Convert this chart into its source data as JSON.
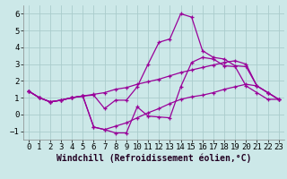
{
  "xlabel": "Windchill (Refroidissement éolien,°C)",
  "bg_color": "#cce8e8",
  "line_color": "#990099",
  "grid_color": "#aacccc",
  "xlim": [
    -0.5,
    23.5
  ],
  "ylim": [
    -1.5,
    6.5
  ],
  "xticks": [
    0,
    1,
    2,
    3,
    4,
    5,
    6,
    7,
    8,
    9,
    10,
    11,
    12,
    13,
    14,
    15,
    16,
    17,
    18,
    19,
    20,
    21,
    22,
    23
  ],
  "yticks": [
    -1,
    0,
    1,
    2,
    3,
    4,
    5,
    6
  ],
  "y_line1": [
    1.4,
    1.0,
    0.75,
    0.85,
    1.0,
    1.1,
    1.15,
    0.35,
    0.85,
    0.85,
    1.65,
    3.0,
    4.3,
    4.5,
    6.0,
    5.8,
    3.8,
    3.4,
    3.3,
    2.9,
    2.85,
    1.7,
    1.3,
    0.9
  ],
  "y_line2": [
    1.4,
    1.0,
    0.75,
    0.85,
    1.0,
    1.1,
    -0.75,
    -0.9,
    -1.1,
    -1.1,
    0.45,
    -0.1,
    -0.15,
    -0.2,
    1.65,
    3.1,
    3.4,
    3.3,
    2.9,
    2.85,
    1.7,
    1.3,
    0.9,
    0.9
  ],
  "y_line3": [
    1.4,
    1.0,
    0.75,
    0.85,
    1.0,
    1.1,
    1.2,
    1.3,
    1.5,
    1.6,
    1.8,
    1.95,
    2.1,
    2.3,
    2.5,
    2.65,
    2.8,
    2.95,
    3.1,
    3.2,
    3.0,
    1.7,
    1.3,
    0.9
  ],
  "y_line4": [
    1.4,
    1.0,
    0.75,
    0.85,
    1.0,
    1.1,
    -0.75,
    -0.9,
    -0.7,
    -0.5,
    -0.2,
    0.1,
    0.35,
    0.65,
    0.9,
    1.05,
    1.15,
    1.3,
    1.5,
    1.65,
    1.8,
    1.7,
    1.3,
    0.9
  ],
  "font_family": "monospace",
  "tick_fontsize": 6.5,
  "xlabel_fontsize": 7
}
